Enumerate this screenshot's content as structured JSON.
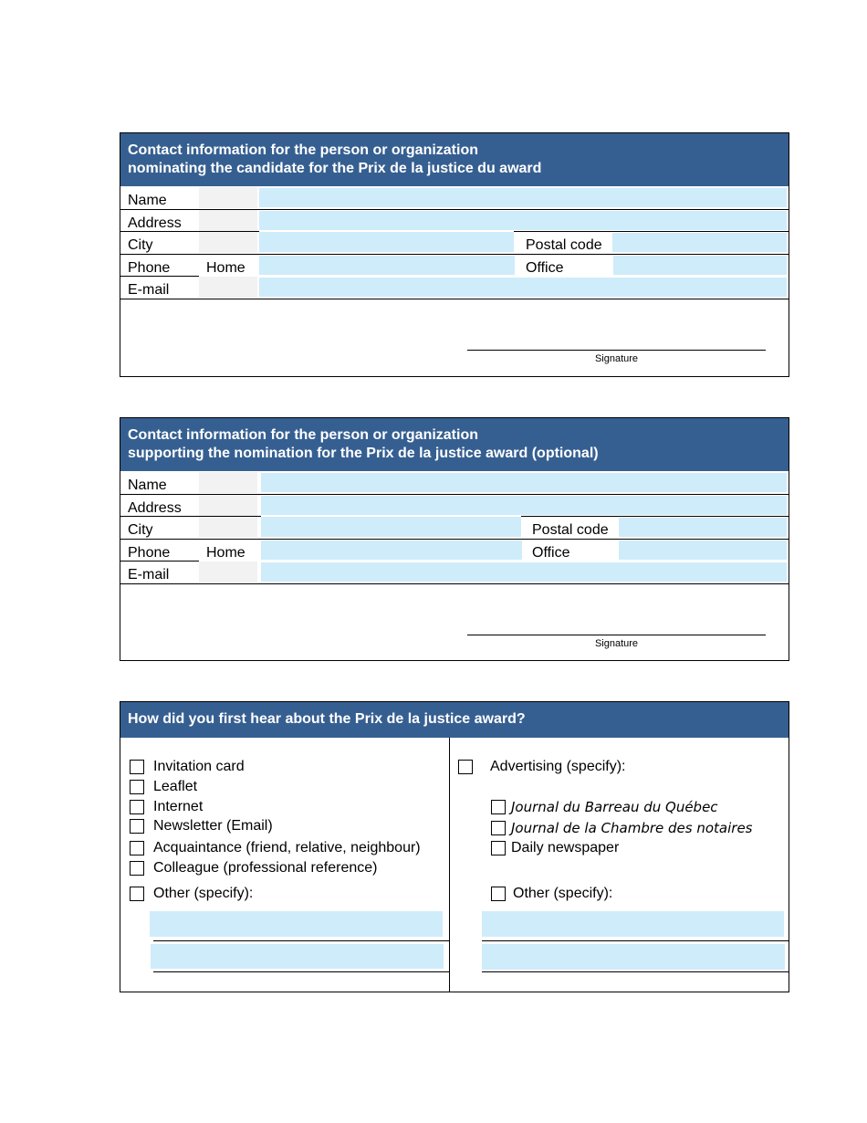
{
  "colors": {
    "header": "#365f91",
    "field": "#cfecfa",
    "label_cell": "#f2f2f2"
  },
  "sections": [
    {
      "title_line1": "Contact information for the person or organization",
      "title_line2": "nominating the candidate for the Prix de la justice du award",
      "name": "Name",
      "address": "Address",
      "city": "City",
      "postal_code": "Postal code",
      "phone": "Phone",
      "home": "Home",
      "office": "Office",
      "email": "E-mail",
      "signature": "Signature"
    },
    {
      "title_line1": "Contact information for the person or organization",
      "title_line2": "supporting the nomination for the Prix de la justice award (optional)",
      "name": "Name",
      "address": "Address",
      "city": "City",
      "postal_code": "Postal code",
      "phone": "Phone",
      "home": "Home",
      "office": "Office",
      "email": "E-mail",
      "signature": "Signature"
    }
  ],
  "survey": {
    "title": "How did you first hear about the Prix de la justice award?",
    "left_options": [
      "Invitation card",
      "Leaflet",
      "Internet",
      "Newsletter (Email)",
      "Acquaintance (friend, relative, neighbour)",
      "Colleague (professional reference)",
      "Other (specify):"
    ],
    "advertising": "Advertising (specify):",
    "advertising_options": [
      "Journal du Barreau du Québec",
      "Journal de la Chambre des notaires",
      "Daily newspaper"
    ],
    "right_other": "Other (specify):"
  }
}
